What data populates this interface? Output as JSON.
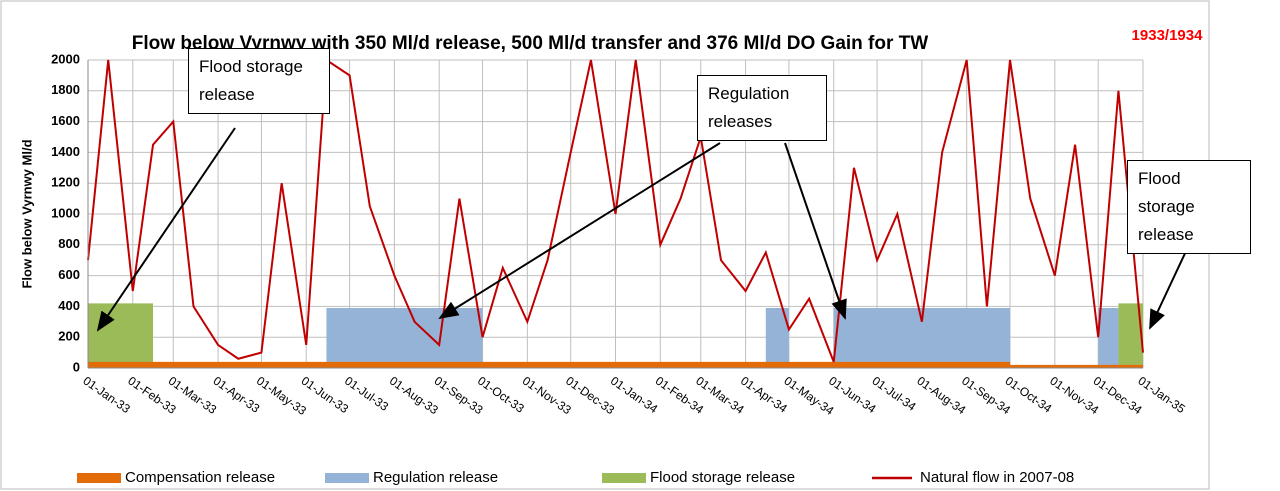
{
  "chart_data": {
    "type": "area-line",
    "title": "Flow below Vyrnwy with 350 Ml/d release, 500 Ml/d transfer and 376 Ml/d DO Gain for TW",
    "subtitle": "1933/1934",
    "y_label": "Flow below Vyrnwy Ml/d",
    "x": [
      "01-Jan-33",
      "15-Jan-33",
      "01-Feb-33",
      "15-Feb-33",
      "01-Mar-33",
      "15-Mar-33",
      "01-Apr-33",
      "15-Apr-33",
      "01-May-33",
      "15-May-33",
      "01-Jun-33",
      "15-Jun-33",
      "01-Jul-33",
      "15-Jul-33",
      "01-Aug-33",
      "15-Aug-33",
      "01-Sep-33",
      "15-Sep-33",
      "01-Oct-33",
      "15-Oct-33",
      "01-Nov-33",
      "15-Nov-33",
      "01-Dec-33",
      "15-Dec-33",
      "01-Jan-34",
      "15-Jan-34",
      "01-Feb-34",
      "15-Feb-34",
      "01-Mar-34",
      "15-Mar-34",
      "01-Apr-34",
      "15-Apr-34",
      "01-May-34",
      "15-May-34",
      "01-Jun-34",
      "15-Jun-34",
      "01-Jul-34",
      "15-Jul-34",
      "01-Aug-34",
      "15-Aug-34",
      "01-Sep-34",
      "15-Sep-34",
      "01-Oct-34",
      "15-Oct-34",
      "01-Nov-34",
      "15-Nov-34",
      "01-Dec-34",
      "15-Dec-34",
      "01-Jan-35"
    ],
    "series": [
      {
        "name": "Compensation release",
        "color": "#e36c09",
        "values": [
          40,
          40,
          40,
          40,
          40,
          40,
          40,
          40,
          40,
          40,
          40,
          40,
          40,
          40,
          40,
          40,
          40,
          40,
          40,
          40,
          40,
          40,
          40,
          40,
          40,
          40,
          40,
          40,
          40,
          40,
          40,
          40,
          40,
          40,
          40,
          40,
          40,
          40,
          40,
          40,
          40,
          40,
          20,
          20,
          20,
          20,
          20,
          20,
          20
        ]
      },
      {
        "name": "Regulation release",
        "color": "#95b3d7",
        "values": [
          0,
          0,
          0,
          0,
          0,
          0,
          0,
          0,
          0,
          0,
          0,
          390,
          390,
          390,
          390,
          390,
          390,
          390,
          0,
          0,
          0,
          0,
          0,
          0,
          0,
          0,
          0,
          0,
          0,
          0,
          0,
          390,
          0,
          0,
          390,
          390,
          390,
          390,
          390,
          390,
          390,
          390,
          0,
          0,
          0,
          0,
          390,
          0,
          0
        ]
      },
      {
        "name": "Flood storage release",
        "color": "#9bbb59",
        "values": [
          420,
          420,
          420,
          0,
          0,
          0,
          0,
          0,
          0,
          0,
          0,
          0,
          0,
          0,
          0,
          0,
          0,
          0,
          0,
          0,
          0,
          0,
          0,
          0,
          0,
          0,
          0,
          0,
          0,
          0,
          0,
          0,
          0,
          0,
          0,
          0,
          0,
          0,
          0,
          0,
          0,
          0,
          0,
          0,
          0,
          0,
          0,
          420,
          420
        ]
      },
      {
        "name": "Natural flow in 2007-08",
        "color": "#c00000",
        "values": [
          700,
          2000,
          500,
          1450,
          1600,
          400,
          150,
          60,
          100,
          1200,
          150,
          2000,
          1900,
          1050,
          600,
          300,
          150,
          1100,
          200,
          650,
          300,
          700,
          1400,
          2000,
          1000,
          2000,
          800,
          1100,
          1500,
          700,
          500,
          750,
          250,
          450,
          40,
          1300,
          700,
          1000,
          300,
          1400,
          2000,
          400,
          2000,
          1100,
          600,
          1450,
          200,
          1800,
          100
        ]
      }
    ],
    "ylim": [
      0,
      2000
    ],
    "yticks": [
      0,
      200,
      400,
      600,
      800,
      1000,
      1200,
      1400,
      1600,
      1800,
      2000
    ],
    "xticks": [
      "01-Jan-33",
      "01-Feb-33",
      "01-Mar-33",
      "01-Apr-33",
      "01-May-33",
      "01-Jun-33",
      "01-Jul-33",
      "01-Aug-33",
      "01-Sep-33",
      "01-Oct-33",
      "01-Nov-33",
      "01-Dec-33",
      "01-Jan-34",
      "01-Feb-34",
      "01-Mar-34",
      "01-Apr-34",
      "01-May-34",
      "01-Jun-34",
      "01-Jul-34",
      "01-Aug-34",
      "01-Sep-34",
      "01-Oct-34",
      "01-Nov-34",
      "01-Dec-34",
      "01-Jan-35"
    ],
    "grid": true,
    "legend": "bottom",
    "annotations": [
      "Flood storage release",
      "Regulation releases",
      "Flood storage release"
    ]
  }
}
